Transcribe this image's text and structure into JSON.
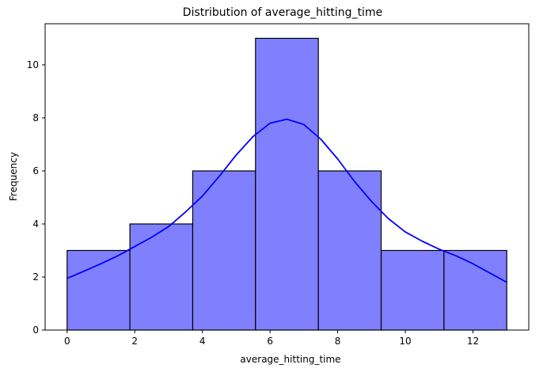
{
  "chart_data": {
    "type": "bar",
    "title": "Distribution of average_hitting_time",
    "xlabel": "average_hitting_time",
    "ylabel": "Frequency",
    "xlim": [
      -0.65,
      13.65
    ],
    "ylim": [
      0,
      11.55
    ],
    "x_ticks": [
      0,
      2,
      4,
      6,
      8,
      10,
      12
    ],
    "y_ticks": [
      0,
      2,
      4,
      6,
      8,
      10
    ],
    "bins": [
      {
        "x0": 0.0,
        "x1": 1.857,
        "count": 3
      },
      {
        "x0": 1.857,
        "x1": 3.714,
        "count": 4
      },
      {
        "x0": 3.714,
        "x1": 5.571,
        "count": 6
      },
      {
        "x0": 5.571,
        "x1": 7.429,
        "count": 11
      },
      {
        "x0": 7.429,
        "x1": 9.286,
        "count": 6
      },
      {
        "x0": 9.286,
        "x1": 11.143,
        "count": 3
      },
      {
        "x0": 11.143,
        "x1": 13.0,
        "count": 3
      }
    ],
    "kde_series": {
      "x": [
        0,
        0.5,
        1,
        1.5,
        2,
        2.5,
        3,
        3.5,
        4,
        4.5,
        5,
        5.5,
        6,
        6.5,
        7,
        7.5,
        8,
        8.5,
        9,
        9.5,
        10,
        10.5,
        11,
        11.5,
        12,
        12.5,
        13
      ],
      "y": [
        1.95,
        2.22,
        2.5,
        2.8,
        3.15,
        3.5,
        3.9,
        4.45,
        5.05,
        5.8,
        6.6,
        7.3,
        7.8,
        7.95,
        7.75,
        7.2,
        6.45,
        5.6,
        4.85,
        4.2,
        3.7,
        3.35,
        3.05,
        2.8,
        2.5,
        2.15,
        1.8
      ]
    },
    "colors": {
      "bar_fill": "#8080ff",
      "bar_edge": "#000000",
      "kde_line": "#0000ff"
    },
    "grid": false,
    "legend": "none"
  }
}
